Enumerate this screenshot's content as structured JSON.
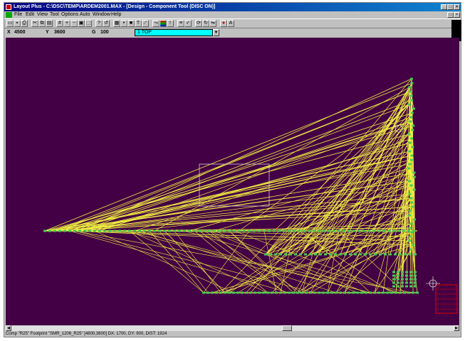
{
  "window": {
    "title": "Layout Plus - C:\\DSC\\TEMP\\ARDEM2001.MAX - [Design - Component Tool (DISC ON)]"
  },
  "menu": {
    "items": [
      "File",
      "Edit",
      "View",
      "Tool",
      "Options",
      "Auto",
      "Window",
      "Help"
    ]
  },
  "toolbar": {
    "icons": [
      "open-icon",
      "save-icon",
      "print-icon",
      "cut-icon",
      "copy-icon",
      "paste-icon",
      "grid-icon",
      "zoom-in-icon",
      "zoom-out-icon",
      "zoom-all-icon",
      "zoom-area-icon",
      "query-icon",
      "reconnect-icon",
      "component-icon",
      "pin-icon",
      "obstacle-icon",
      "text-icon",
      "connection-icon",
      "route-icon",
      "color-icon",
      "error-icon",
      "layer-icon",
      "drc-icon",
      "refresh-icon",
      "rotate-icon",
      "mirror-icon",
      "stop-icon",
      "auto-icon"
    ]
  },
  "status": {
    "x_label": "X",
    "x_value": "4500",
    "y_label": "Y",
    "y_value": "3600",
    "g_label": "G",
    "g_value": "100",
    "layer": "1 TOP"
  },
  "bottom_status": "Comp \"R25\" Footprint \"SMR_1206_R25\"   [4800,3600] DX: 1700, DY: 900, DIST: 1924",
  "colors": {
    "canvas_bg": "#440044",
    "ratsnest": "#f0f040",
    "pads": "#44cc55",
    "selection_box": "#d8c8d8",
    "marker": "#e00000"
  }
}
